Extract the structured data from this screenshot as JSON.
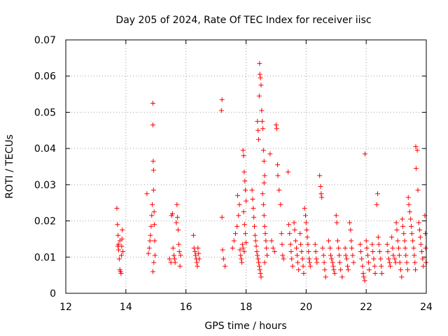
{
  "chart_data": {
    "type": "scatter",
    "title": "Day 205 of 2024, Rate Of TEC Index for receiver iisc",
    "xlabel": "GPS time / hours",
    "ylabel": "ROTI / TECUs",
    "xlim": [
      12,
      24
    ],
    "ylim": [
      0,
      0.07
    ],
    "x_ticks": [
      12,
      14,
      16,
      18,
      20,
      22,
      24
    ],
    "x_tick_labels": [
      "12",
      "14",
      "16",
      "18",
      "20",
      "22",
      "24"
    ],
    "y_ticks": [
      0,
      0.01,
      0.02,
      0.03,
      0.04,
      0.05,
      0.06,
      0.07
    ],
    "y_tick_labels": [
      "0",
      "0.01",
      "0.02",
      "0.03",
      "0.04",
      "0.05",
      "0.06",
      "0.07"
    ],
    "grid": true,
    "marker": "+",
    "color": "#ff0000",
    "series": [
      {
        "name": "ROTI",
        "points": [
          [
            13.7,
            0.0235
          ],
          [
            13.72,
            0.019
          ],
          [
            13.74,
            0.016
          ],
          [
            13.75,
            0.0135
          ],
          [
            13.76,
            0.012
          ],
          [
            13.78,
            0.0095
          ],
          [
            13.8,
            0.0065
          ],
          [
            13.82,
            0.006
          ],
          [
            13.84,
            0.0055
          ],
          [
            13.85,
            0.0105
          ],
          [
            13.86,
            0.013
          ],
          [
            13.87,
            0.015
          ],
          [
            13.88,
            0.0175
          ],
          [
            13.8,
            0.0145
          ],
          [
            13.73,
            0.013
          ],
          [
            13.9,
            0.0115
          ],
          [
            14.7,
            0.0275
          ],
          [
            14.75,
            0.011
          ],
          [
            14.78,
            0.0125
          ],
          [
            14.8,
            0.0145
          ],
          [
            14.82,
            0.016
          ],
          [
            14.84,
            0.0185
          ],
          [
            14.86,
            0.0215
          ],
          [
            14.88,
            0.0245
          ],
          [
            14.9,
            0.0525
          ],
          [
            14.9,
            0.0465
          ],
          [
            14.91,
            0.0365
          ],
          [
            14.92,
            0.034
          ],
          [
            14.92,
            0.0285
          ],
          [
            14.94,
            0.0225
          ],
          [
            14.95,
            0.019
          ],
          [
            14.96,
            0.0145
          ],
          [
            14.97,
            0.0105
          ],
          [
            14.9,
            0.006
          ],
          [
            14.93,
            0.0085
          ],
          [
            15.45,
            0.0095
          ],
          [
            15.5,
            0.0085
          ],
          [
            15.52,
            0.0215
          ],
          [
            15.55,
            0.022
          ],
          [
            15.57,
            0.0125
          ],
          [
            15.6,
            0.0105
          ],
          [
            15.62,
            0.0095
          ],
          [
            15.64,
            0.0085
          ],
          [
            15.7,
            0.0245
          ],
          [
            15.72,
            0.021
          ],
          [
            15.74,
            0.0175
          ],
          [
            15.76,
            0.0135
          ],
          [
            15.78,
            0.0115
          ],
          [
            15.8,
            0.0075
          ],
          [
            15.82,
            0.0105
          ],
          [
            15.68,
            0.0195
          ],
          [
            16.25,
            0.016
          ],
          [
            16.27,
            0.0125
          ],
          [
            16.3,
            0.0115
          ],
          [
            16.32,
            0.0105
          ],
          [
            16.34,
            0.0095
          ],
          [
            16.36,
            0.0085
          ],
          [
            16.38,
            0.0075
          ],
          [
            16.4,
            0.0125
          ],
          [
            16.42,
            0.011
          ],
          [
            16.44,
            0.0095
          ],
          [
            17.2,
            0.0535
          ],
          [
            17.18,
            0.0505
          ],
          [
            17.2,
            0.021
          ],
          [
            17.22,
            0.012
          ],
          [
            17.25,
            0.0095
          ],
          [
            17.3,
            0.0075
          ],
          [
            17.55,
            0.0125
          ],
          [
            17.6,
            0.0145
          ],
          [
            17.65,
            0.0165
          ],
          [
            17.7,
            0.0185
          ],
          [
            17.75,
            0.0215
          ],
          [
            17.72,
            0.027
          ],
          [
            17.78,
            0.0245
          ],
          [
            17.8,
            0.012
          ],
          [
            17.82,
            0.0105
          ],
          [
            17.84,
            0.0095
          ],
          [
            17.86,
            0.0085
          ],
          [
            17.9,
            0.0395
          ],
          [
            17.92,
            0.038
          ],
          [
            17.94,
            0.0335
          ],
          [
            17.96,
            0.031
          ],
          [
            17.98,
            0.0285
          ],
          [
            18.0,
            0.0255
          ],
          [
            17.92,
            0.0225
          ],
          [
            17.95,
            0.019
          ],
          [
            17.98,
            0.0165
          ],
          [
            18.0,
            0.014
          ],
          [
            17.88,
            0.0135
          ],
          [
            17.9,
            0.0125
          ],
          [
            17.94,
            0.0115
          ],
          [
            18.2,
            0.0285
          ],
          [
            18.22,
            0.026
          ],
          [
            18.24,
            0.0235
          ],
          [
            18.26,
            0.021
          ],
          [
            18.28,
            0.0185
          ],
          [
            18.3,
            0.016
          ],
          [
            18.32,
            0.0145
          ],
          [
            18.34,
            0.013
          ],
          [
            18.36,
            0.0115
          ],
          [
            18.38,
            0.0105
          ],
          [
            18.4,
            0.0095
          ],
          [
            18.42,
            0.0085
          ],
          [
            18.44,
            0.0075
          ],
          [
            18.46,
            0.0065
          ],
          [
            18.48,
            0.0055
          ],
          [
            18.5,
            0.0045
          ],
          [
            18.38,
            0.0475
          ],
          [
            18.4,
            0.045
          ],
          [
            18.42,
            0.0425
          ],
          [
            18.44,
            0.0545
          ],
          [
            18.45,
            0.0635
          ],
          [
            18.46,
            0.0605
          ],
          [
            18.48,
            0.0595
          ],
          [
            18.5,
            0.0575
          ],
          [
            18.52,
            0.0505
          ],
          [
            18.54,
            0.0475
          ],
          [
            18.56,
            0.0455
          ],
          [
            18.58,
            0.0395
          ],
          [
            18.6,
            0.0365
          ],
          [
            18.62,
            0.0325
          ],
          [
            18.6,
            0.0305
          ],
          [
            18.55,
            0.0275
          ],
          [
            18.58,
            0.0245
          ],
          [
            18.6,
            0.0215
          ],
          [
            18.62,
            0.0185
          ],
          [
            18.64,
            0.0165
          ],
          [
            18.66,
            0.0145
          ],
          [
            18.68,
            0.0125
          ],
          [
            18.7,
            0.0105
          ],
          [
            18.62,
            0.0085
          ],
          [
            18.8,
            0.0385
          ],
          [
            18.85,
            0.0145
          ],
          [
            18.9,
            0.0125
          ],
          [
            18.95,
            0.0115
          ],
          [
            19.0,
            0.0465
          ],
          [
            19.02,
            0.0455
          ],
          [
            19.05,
            0.0355
          ],
          [
            19.06,
            0.0325
          ],
          [
            19.1,
            0.0285
          ],
          [
            19.15,
            0.0245
          ],
          [
            19.18,
            0.0165
          ],
          [
            19.2,
            0.0135
          ],
          [
            19.22,
            0.0105
          ],
          [
            19.25,
            0.0095
          ],
          [
            19.4,
            0.0335
          ],
          [
            19.42,
            0.019
          ],
          [
            19.45,
            0.0165
          ],
          [
            19.48,
            0.0135
          ],
          [
            19.5,
            0.0115
          ],
          [
            19.52,
            0.0095
          ],
          [
            19.55,
            0.0075
          ],
          [
            19.6,
            0.0195
          ],
          [
            19.62,
            0.0175
          ],
          [
            19.65,
            0.0145
          ],
          [
            19.68,
            0.0125
          ],
          [
            19.7,
            0.0105
          ],
          [
            19.72,
            0.0085
          ],
          [
            19.75,
            0.0065
          ],
          [
            19.8,
            0.0165
          ],
          [
            19.82,
            0.0135
          ],
          [
            19.85,
            0.0115
          ],
          [
            19.88,
            0.0095
          ],
          [
            19.9,
            0.0075
          ],
          [
            19.92,
            0.0055
          ],
          [
            19.95,
            0.0235
          ],
          [
            19.98,
            0.0215
          ],
          [
            20.0,
            0.0195
          ],
          [
            20.02,
            0.0175
          ],
          [
            20.04,
            0.0155
          ],
          [
            20.06,
            0.0135
          ],
          [
            20.08,
            0.0115
          ],
          [
            20.1,
            0.0095
          ],
          [
            20.12,
            0.0085
          ],
          [
            20.14,
            0.0075
          ],
          [
            20.3,
            0.0135
          ],
          [
            20.32,
            0.0115
          ],
          [
            20.34,
            0.0095
          ],
          [
            20.36,
            0.0085
          ],
          [
            20.45,
            0.0325
          ],
          [
            20.48,
            0.0295
          ],
          [
            20.5,
            0.0275
          ],
          [
            20.52,
            0.0265
          ],
          [
            20.55,
            0.0125
          ],
          [
            20.58,
            0.0105
          ],
          [
            20.6,
            0.0085
          ],
          [
            20.62,
            0.0065
          ],
          [
            20.65,
            0.0045
          ],
          [
            20.75,
            0.0145
          ],
          [
            20.8,
            0.0125
          ],
          [
            20.82,
            0.0105
          ],
          [
            20.85,
            0.0095
          ],
          [
            20.88,
            0.0085
          ],
          [
            20.9,
            0.0075
          ],
          [
            20.92,
            0.0065
          ],
          [
            20.95,
            0.0055
          ],
          [
            21.0,
            0.0215
          ],
          [
            21.02,
            0.0195
          ],
          [
            21.05,
            0.0145
          ],
          [
            21.08,
            0.0125
          ],
          [
            21.1,
            0.0105
          ],
          [
            21.12,
            0.0085
          ],
          [
            21.15,
            0.0065
          ],
          [
            21.2,
            0.0045
          ],
          [
            21.3,
            0.0125
          ],
          [
            21.32,
            0.0105
          ],
          [
            21.35,
            0.0095
          ],
          [
            21.38,
            0.0075
          ],
          [
            21.4,
            0.0065
          ],
          [
            21.45,
            0.0195
          ],
          [
            21.48,
            0.0175
          ],
          [
            21.5,
            0.0145
          ],
          [
            21.52,
            0.0125
          ],
          [
            21.55,
            0.0105
          ],
          [
            21.58,
            0.0085
          ],
          [
            21.8,
            0.0135
          ],
          [
            21.82,
            0.0115
          ],
          [
            21.85,
            0.0095
          ],
          [
            21.88,
            0.0075
          ],
          [
            21.9,
            0.0055
          ],
          [
            21.92,
            0.0045
          ],
          [
            21.95,
            0.0035
          ],
          [
            21.96,
            0.0385
          ],
          [
            22.0,
            0.0145
          ],
          [
            22.02,
            0.0125
          ],
          [
            22.05,
            0.0105
          ],
          [
            22.08,
            0.0085
          ],
          [
            22.1,
            0.0065
          ],
          [
            22.2,
            0.0135
          ],
          [
            22.22,
            0.0115
          ],
          [
            22.25,
            0.0095
          ],
          [
            22.28,
            0.0075
          ],
          [
            22.3,
            0.0055
          ],
          [
            22.35,
            0.0245
          ],
          [
            22.38,
            0.0275
          ],
          [
            22.4,
            0.0155
          ],
          [
            22.42,
            0.0135
          ],
          [
            22.45,
            0.0115
          ],
          [
            22.48,
            0.0095
          ],
          [
            22.5,
            0.0075
          ],
          [
            22.52,
            0.0055
          ],
          [
            22.7,
            0.0135
          ],
          [
            22.72,
            0.0115
          ],
          [
            22.75,
            0.0095
          ],
          [
            22.78,
            0.0085
          ],
          [
            22.8,
            0.0075
          ],
          [
            22.85,
            0.0155
          ],
          [
            22.88,
            0.0125
          ],
          [
            22.9,
            0.0105
          ],
          [
            22.95,
            0.0095
          ],
          [
            22.98,
            0.0085
          ],
          [
            23.0,
            0.0195
          ],
          [
            23.02,
            0.0175
          ],
          [
            23.05,
            0.0145
          ],
          [
            23.08,
            0.0125
          ],
          [
            23.1,
            0.0105
          ],
          [
            23.12,
            0.0085
          ],
          [
            23.15,
            0.0065
          ],
          [
            23.18,
            0.0045
          ],
          [
            23.2,
            0.0205
          ],
          [
            23.22,
            0.0185
          ],
          [
            23.25,
            0.0165
          ],
          [
            23.28,
            0.0145
          ],
          [
            23.3,
            0.0125
          ],
          [
            23.32,
            0.0105
          ],
          [
            23.35,
            0.0085
          ],
          [
            23.38,
            0.0065
          ],
          [
            23.4,
            0.0265
          ],
          [
            23.42,
            0.0245
          ],
          [
            23.45,
            0.0225
          ],
          [
            23.48,
            0.0205
          ],
          [
            23.5,
            0.0185
          ],
          [
            23.52,
            0.0165
          ],
          [
            23.55,
            0.0145
          ],
          [
            23.58,
            0.0125
          ],
          [
            23.6,
            0.0105
          ],
          [
            23.62,
            0.0085
          ],
          [
            23.64,
            0.0065
          ],
          [
            23.65,
            0.0405
          ],
          [
            23.66,
            0.0345
          ],
          [
            23.7,
            0.0395
          ],
          [
            23.72,
            0.0285
          ],
          [
            23.75,
            0.0195
          ],
          [
            23.78,
            0.0175
          ],
          [
            23.8,
            0.0155
          ],
          [
            23.82,
            0.0135
          ],
          [
            23.85,
            0.0115
          ],
          [
            23.88,
            0.0095
          ],
          [
            23.9,
            0.0075
          ],
          [
            23.95,
            0.0215
          ],
          [
            23.97,
            0.0165
          ],
          [
            23.98,
            0.0125
          ],
          [
            23.99,
            0.0085
          ]
        ]
      }
    ]
  }
}
